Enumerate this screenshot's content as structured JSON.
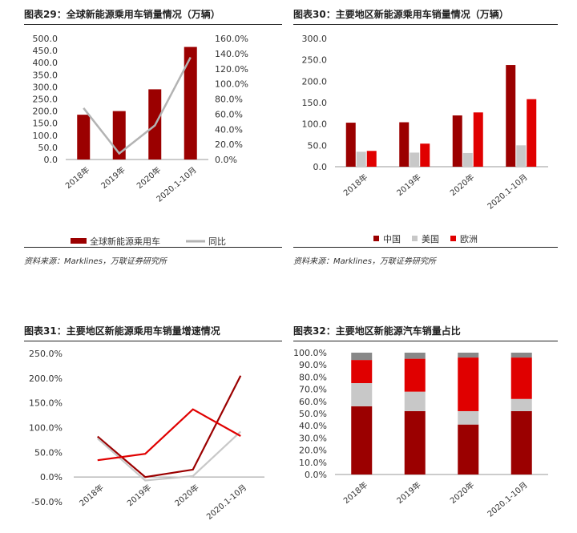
{
  "sources": {
    "left": "资料来源：Marklines，万联证券研究所",
    "right": "资料来源：Marklines，万联证券研究所"
  },
  "colors": {
    "dark_red": "#9b0000",
    "gray": "#b3b3b3",
    "red": "#e00000",
    "light_gray": "#c8c8c8"
  },
  "chart_data": [
    {
      "type": "bar",
      "title": "图表29：全球新能源乘用车销量情况（万辆）",
      "categories": [
        "2018年",
        "2019年",
        "2020年",
        "2020.1-10月"
      ],
      "y_ticks": [
        "500.0",
        "450.0",
        "400.0",
        "350.0",
        "300.0",
        "250.0",
        "200.0",
        "150.0",
        "100.0",
        "50.0",
        "0.0"
      ],
      "y2_ticks": [
        "160.0%",
        "140.0%",
        "120.0%",
        "100.0%",
        "80.0%",
        "60.0%",
        "40.0%",
        "20.0%",
        "0.0%"
      ],
      "ylim": [
        0,
        500
      ],
      "y2lim": [
        0,
        160
      ],
      "series": [
        {
          "name": "全球新能源乘用车",
          "kind": "bar",
          "axis": "left",
          "values": [
            185,
            200,
            290,
            465
          ]
        },
        {
          "name": "同比",
          "kind": "line",
          "axis": "right",
          "values": [
            68,
            8,
            45,
            135
          ]
        }
      ]
    },
    {
      "type": "bar",
      "title": "图表30：主要地区新能源乘用车销量情况（万辆）",
      "categories": [
        "2018年",
        "2019年",
        "2020年",
        "2020.1-10月"
      ],
      "y_ticks": [
        "300.0",
        "250.0",
        "200.0",
        "150.0",
        "100.0",
        "50.0",
        "0.0"
      ],
      "ylim": [
        0,
        300
      ],
      "series": [
        {
          "name": "中国",
          "values": [
            103,
            104,
            120,
            238
          ]
        },
        {
          "name": "美国",
          "values": [
            35,
            33,
            32,
            50
          ]
        },
        {
          "name": "欧洲",
          "values": [
            37,
            54,
            127,
            158
          ]
        }
      ]
    },
    {
      "type": "line",
      "title": "图表31：主要地区新能源乘用车销量增速情况",
      "categories": [
        "2018年",
        "2019年",
        "2020年",
        "2020.1-10月"
      ],
      "y_ticks": [
        "250.0%",
        "200.0%",
        "150.0%",
        "100.0%",
        "50.0%",
        "0.0%",
        "-50.0%"
      ],
      "ylim": [
        -50,
        250
      ],
      "series": [
        {
          "values": [
            82,
            0,
            15,
            205
          ]
        },
        {
          "values": [
            78,
            -7,
            2,
            92
          ]
        },
        {
          "values": [
            34,
            47,
            137,
            83
          ]
        }
      ]
    },
    {
      "type": "bar",
      "stacked": true,
      "title": "图表32：主要地区新能源汽车销量占比",
      "categories": [
        "2018年",
        "2019年",
        "2020年",
        "2020.1-10月"
      ],
      "y_ticks": [
        "100.0%",
        "90.0%",
        "80.0%",
        "70.0%",
        "60.0%",
        "50.0%",
        "40.0%",
        "30.0%",
        "20.0%",
        "10.0%",
        "0.0%"
      ],
      "ylim": [
        0,
        100
      ],
      "series": [
        {
          "values": [
            56,
            52,
            41,
            52
          ]
        },
        {
          "values": [
            19,
            16,
            11,
            10
          ]
        },
        {
          "values": [
            19,
            27,
            44,
            34
          ]
        },
        {
          "values": [
            6,
            5,
            4,
            4
          ]
        }
      ]
    }
  ]
}
